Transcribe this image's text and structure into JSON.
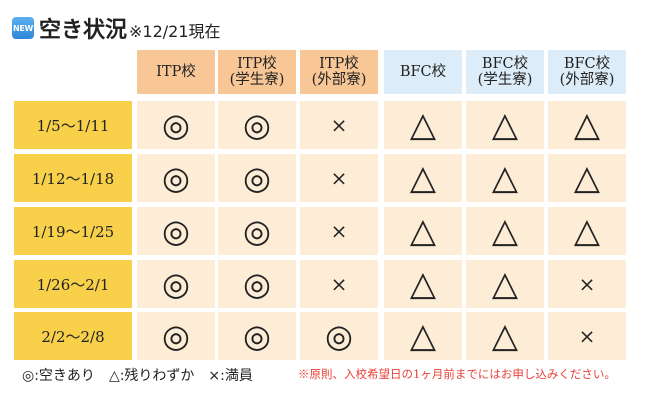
{
  "title": {
    "badge": "NEW",
    "main": "空き状況",
    "note": "※12/21現在"
  },
  "columns": [
    {
      "label_line1": "ITP校",
      "label_line2": "",
      "group": "itp"
    },
    {
      "label_line1": "ITP校",
      "label_line2": "(学生寮)",
      "group": "itp"
    },
    {
      "label_line1": "ITP校",
      "label_line2": "(外部寮)",
      "group": "itp"
    },
    {
      "label_line1": "BFC校",
      "label_line2": "",
      "group": "bfc"
    },
    {
      "label_line1": "BFC校",
      "label_line2": "(学生寮)",
      "group": "bfc"
    },
    {
      "label_line1": "BFC校",
      "label_line2": "(外部寮)",
      "group": "bfc"
    }
  ],
  "rows": [
    {
      "label": "1/5〜1/11",
      "values": [
        "◎",
        "◎",
        "×",
        "△",
        "△",
        "△"
      ]
    },
    {
      "label": "1/12〜1/18",
      "values": [
        "◎",
        "◎",
        "×",
        "△",
        "△",
        "△"
      ]
    },
    {
      "label": "1/19〜1/25",
      "values": [
        "◎",
        "◎",
        "×",
        "△",
        "△",
        "△"
      ]
    },
    {
      "label": "1/26〜2/1",
      "values": [
        "◎",
        "◎",
        "×",
        "△",
        "△",
        "×"
      ]
    },
    {
      "label": "2/2〜2/8",
      "values": [
        "◎",
        "◎",
        "◎",
        "△",
        "△",
        "×"
      ]
    }
  ],
  "legend": [
    {
      "label": "◎:空きあり"
    },
    {
      "label": "△:残りわずか"
    },
    {
      "label": "×:満員"
    }
  ],
  "note": "※原則、入校希望日の1ヶ月前までにはお申し込みください。",
  "colors": {
    "header_itp": "#f9c796",
    "header_bfc": "#dcecf8",
    "row_label": "#f8d04a",
    "cell": "#fdecd6",
    "note_text": "#e8433a"
  }
}
